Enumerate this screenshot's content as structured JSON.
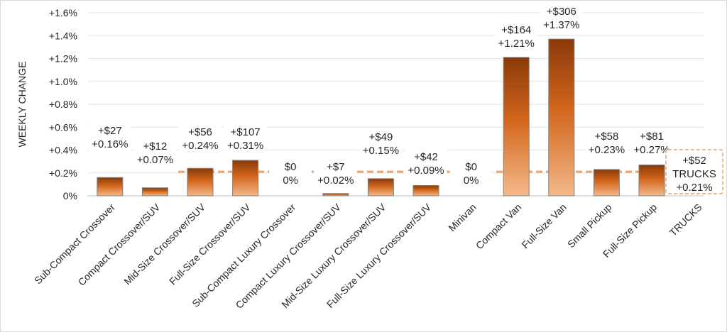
{
  "chart_data": {
    "type": "bar",
    "title": "",
    "ylabel": "WEEKLY CHANGE",
    "xlabel": "",
    "ylim": [
      0,
      1.6
    ],
    "yticks": [
      0,
      0.2,
      0.4,
      0.6,
      0.8,
      1.0,
      1.2,
      1.4,
      1.6
    ],
    "ytick_labels": [
      "0%",
      "+0.2%",
      "+0.4%",
      "+0.6%",
      "+0.8%",
      "+1.0%",
      "+1.2%",
      "+1.4%",
      "+1.6%"
    ],
    "grid": true,
    "categories": [
      "Sub-Compact Crossover",
      "Compact Crossover/SUV",
      "Mid-Size Crossover/SUV",
      "Full-Size Crossover/SUV",
      "Sub-Compact Luxury Crossover",
      "Compact Luxury Crossover/SUV",
      "Mid-Size Luxury Crossover/SUV",
      "Full-Size Luxury Crossover/SUV",
      "Minivan",
      "Compact Van",
      "Full-Size Van",
      "Small Pickup",
      "Full-Size Pickup",
      "TRUCKS"
    ],
    "values": [
      0.16,
      0.07,
      0.24,
      0.31,
      0,
      0.02,
      0.15,
      0.09,
      0,
      1.21,
      1.37,
      0.23,
      0.27,
      null
    ],
    "dollar_labels": [
      "+$27",
      "+$12",
      "+$56",
      "+$107",
      "$0",
      "+$7",
      "+$49",
      "+$42",
      "$0",
      "+$164",
      "+$306",
      "+$58",
      "+$81"
    ],
    "percent_labels": [
      "+0.16%",
      "+0.07%",
      "+0.24%",
      "+0.31%",
      "0%",
      "+0.02%",
      "+0.15%",
      "+0.09%",
      "0%",
      "+1.21%",
      "+1.37%",
      "+0.23%",
      "+0.27%"
    ],
    "reference_line": {
      "value": 0.21,
      "label_lines": [
        "+$52",
        "TRUCKS",
        "+0.21%"
      ],
      "color": "#f0a060"
    },
    "bar_colors": {
      "top": "#8a3a0a",
      "mid": "#d2661c",
      "bottom": "#f4b98a",
      "border": "#7f7f7f"
    }
  }
}
